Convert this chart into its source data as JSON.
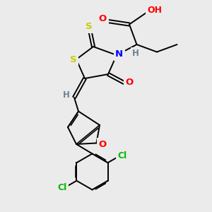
{
  "bg_color": "#ebebeb",
  "atom_colors": {
    "S": "#cccc00",
    "N": "#0000ff",
    "O": "#ff0000",
    "Cl": "#00bb00",
    "C": "#000000",
    "H": "#708090"
  },
  "bond_color": "#000000"
}
